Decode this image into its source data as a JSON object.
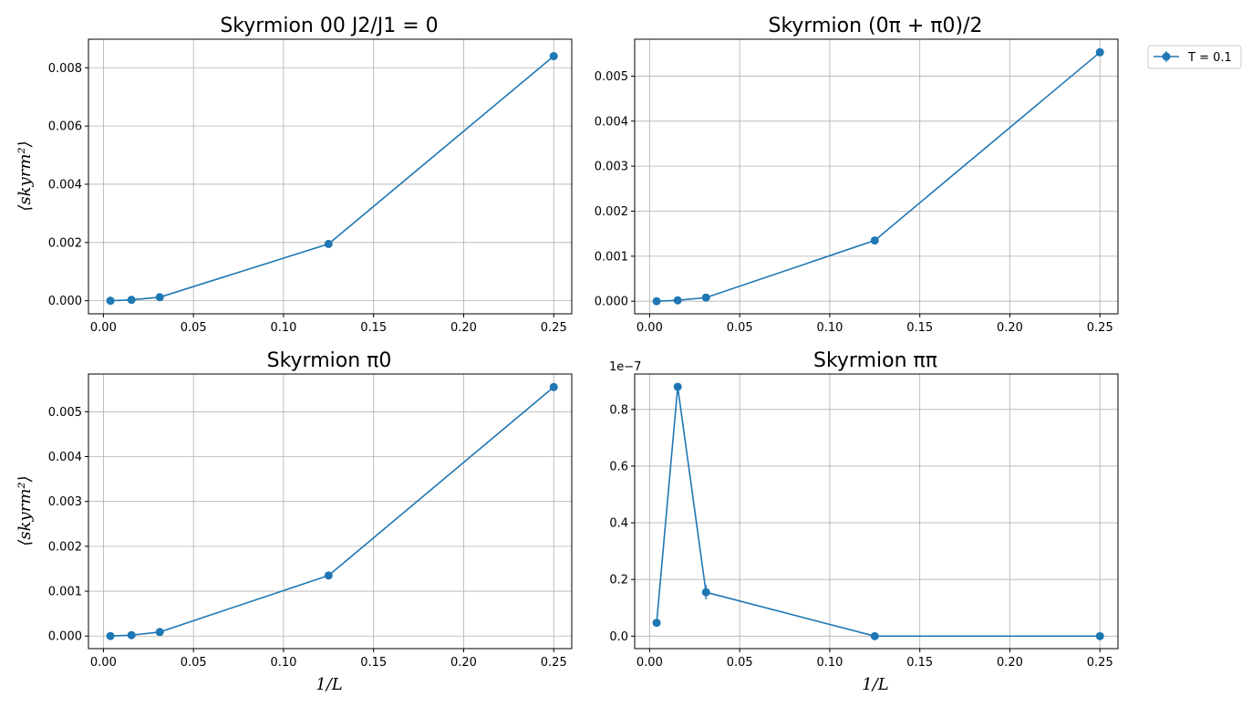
{
  "chart_data": [
    {
      "type": "line",
      "title": "Skyrmion 00 J2/J1 = 0",
      "xlabel": "",
      "ylabel": "⟨skyrm²⟩",
      "xlim": [
        -0.0083,
        0.26
      ],
      "ylim": [
        -0.00045,
        0.00898
      ],
      "xticks": [
        0.0,
        0.05,
        0.1,
        0.15,
        0.2,
        0.25
      ],
      "xtick_labels": [
        "0.00",
        "0.05",
        "0.10",
        "0.15",
        "0.20",
        "0.25"
      ],
      "yticks": [
        0.0,
        0.002,
        0.004,
        0.006,
        0.008
      ],
      "ytick_labels": [
        "0.000",
        "0.002",
        "0.004",
        "0.006",
        "0.008"
      ],
      "offset_text": "",
      "grid": true,
      "series": [
        {
          "color": "#1f77b4",
          "x": [
            0.0039,
            0.0156,
            0.0313,
            0.125,
            0.25
          ],
          "y": [
            0.0,
            3e-05,
            0.00012,
            0.00195,
            0.0084
          ]
        }
      ]
    },
    {
      "type": "line",
      "title": "Skyrmion (0π + π0)/2",
      "xlabel": "",
      "ylabel": "",
      "xlim": [
        -0.0083,
        0.26
      ],
      "ylim": [
        -0.00028,
        0.00582
      ],
      "xticks": [
        0.0,
        0.05,
        0.1,
        0.15,
        0.2,
        0.25
      ],
      "xtick_labels": [
        "0.00",
        "0.05",
        "0.10",
        "0.15",
        "0.20",
        "0.25"
      ],
      "yticks": [
        0.0,
        0.001,
        0.002,
        0.003,
        0.004,
        0.005
      ],
      "ytick_labels": [
        "0.000",
        "0.001",
        "0.002",
        "0.003",
        "0.004",
        "0.005"
      ],
      "offset_text": "",
      "grid": true,
      "legend": {
        "placement": "outside-top-right",
        "entries": [
          "T = 0.1"
        ]
      },
      "series": [
        {
          "name": "T = 0.1",
          "color": "#1f77b4",
          "x": [
            0.0039,
            0.0156,
            0.0313,
            0.125,
            0.25
          ],
          "y": [
            0.0,
            2e-05,
            8e-05,
            0.00135,
            0.00553
          ]
        }
      ]
    },
    {
      "type": "line",
      "title": "Skyrmion π0",
      "xlabel": "1/L",
      "ylabel": "⟨skyrm²⟩",
      "xlim": [
        -0.0083,
        0.26
      ],
      "ylim": [
        -0.00028,
        0.00584
      ],
      "xticks": [
        0.0,
        0.05,
        0.1,
        0.15,
        0.2,
        0.25
      ],
      "xtick_labels": [
        "0.00",
        "0.05",
        "0.10",
        "0.15",
        "0.20",
        "0.25"
      ],
      "yticks": [
        0.0,
        0.001,
        0.002,
        0.003,
        0.004,
        0.005
      ],
      "ytick_labels": [
        "0.000",
        "0.001",
        "0.002",
        "0.003",
        "0.004",
        "0.005"
      ],
      "offset_text": "",
      "grid": true,
      "series": [
        {
          "color": "#1f77b4",
          "x": [
            0.0039,
            0.0156,
            0.0313,
            0.125,
            0.25
          ],
          "y": [
            0.0,
            2e-05,
            9e-05,
            0.00135,
            0.00555
          ]
        }
      ]
    },
    {
      "type": "line",
      "title": "Skyrmion ππ",
      "xlabel": "1/L",
      "ylabel": "",
      "xlim": [
        -0.0083,
        0.26
      ],
      "ylim": [
        -0.044,
        0.925
      ],
      "xticks": [
        0.0,
        0.05,
        0.1,
        0.15,
        0.2,
        0.25
      ],
      "xtick_labels": [
        "0.00",
        "0.05",
        "0.10",
        "0.15",
        "0.20",
        "0.25"
      ],
      "yticks": [
        0.0,
        0.2,
        0.4,
        0.6,
        0.8
      ],
      "ytick_labels": [
        "0.0",
        "0.2",
        "0.4",
        "0.6",
        "0.8"
      ],
      "offset_text": "1e−7",
      "grid": true,
      "series": [
        {
          "color": "#1f77b4",
          "x": [
            0.0039,
            0.0156,
            0.0313,
            0.125,
            0.25
          ],
          "y": [
            0.047,
            0.88,
            0.155,
            0.0,
            0.0
          ],
          "err": [
            0,
            0,
            0.025,
            0,
            0
          ]
        }
      ]
    }
  ]
}
